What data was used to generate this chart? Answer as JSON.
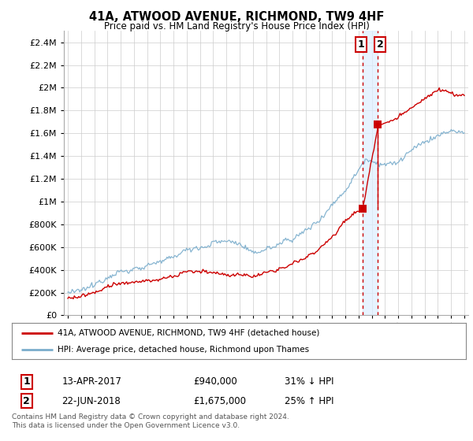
{
  "title": "41A, ATWOOD AVENUE, RICHMOND, TW9 4HF",
  "subtitle": "Price paid vs. HM Land Registry's House Price Index (HPI)",
  "legend_line1": "41A, ATWOOD AVENUE, RICHMOND, TW9 4HF (detached house)",
  "legend_line2": "HPI: Average price, detached house, Richmond upon Thames",
  "transaction1_date": "13-APR-2017",
  "transaction1_price": "£940,000",
  "transaction1_hpi": "31% ↓ HPI",
  "transaction2_date": "22-JUN-2018",
  "transaction2_price": "£1,675,000",
  "transaction2_hpi": "25% ↑ HPI",
  "footer": "Contains HM Land Registry data © Crown copyright and database right 2024.\nThis data is licensed under the Open Government Licence v3.0.",
  "price_color": "#cc0000",
  "hpi_color": "#7aadcc",
  "vline_color": "#cc0000",
  "marker_color": "#cc0000",
  "background_color": "#ffffff",
  "grid_color": "#cccccc",
  "shade_color": "#ddeeff",
  "ylim": [
    0,
    2500000
  ],
  "yticks": [
    0,
    200000,
    400000,
    600000,
    800000,
    1000000,
    1200000,
    1400000,
    1600000,
    1800000,
    2000000,
    2200000,
    2400000
  ],
  "xlim_start": 1994.7,
  "xlim_end": 2025.3,
  "transaction1_x": 2017.28,
  "transaction1_y": 940000,
  "transaction2_x": 2018.47,
  "transaction2_y": 1675000
}
